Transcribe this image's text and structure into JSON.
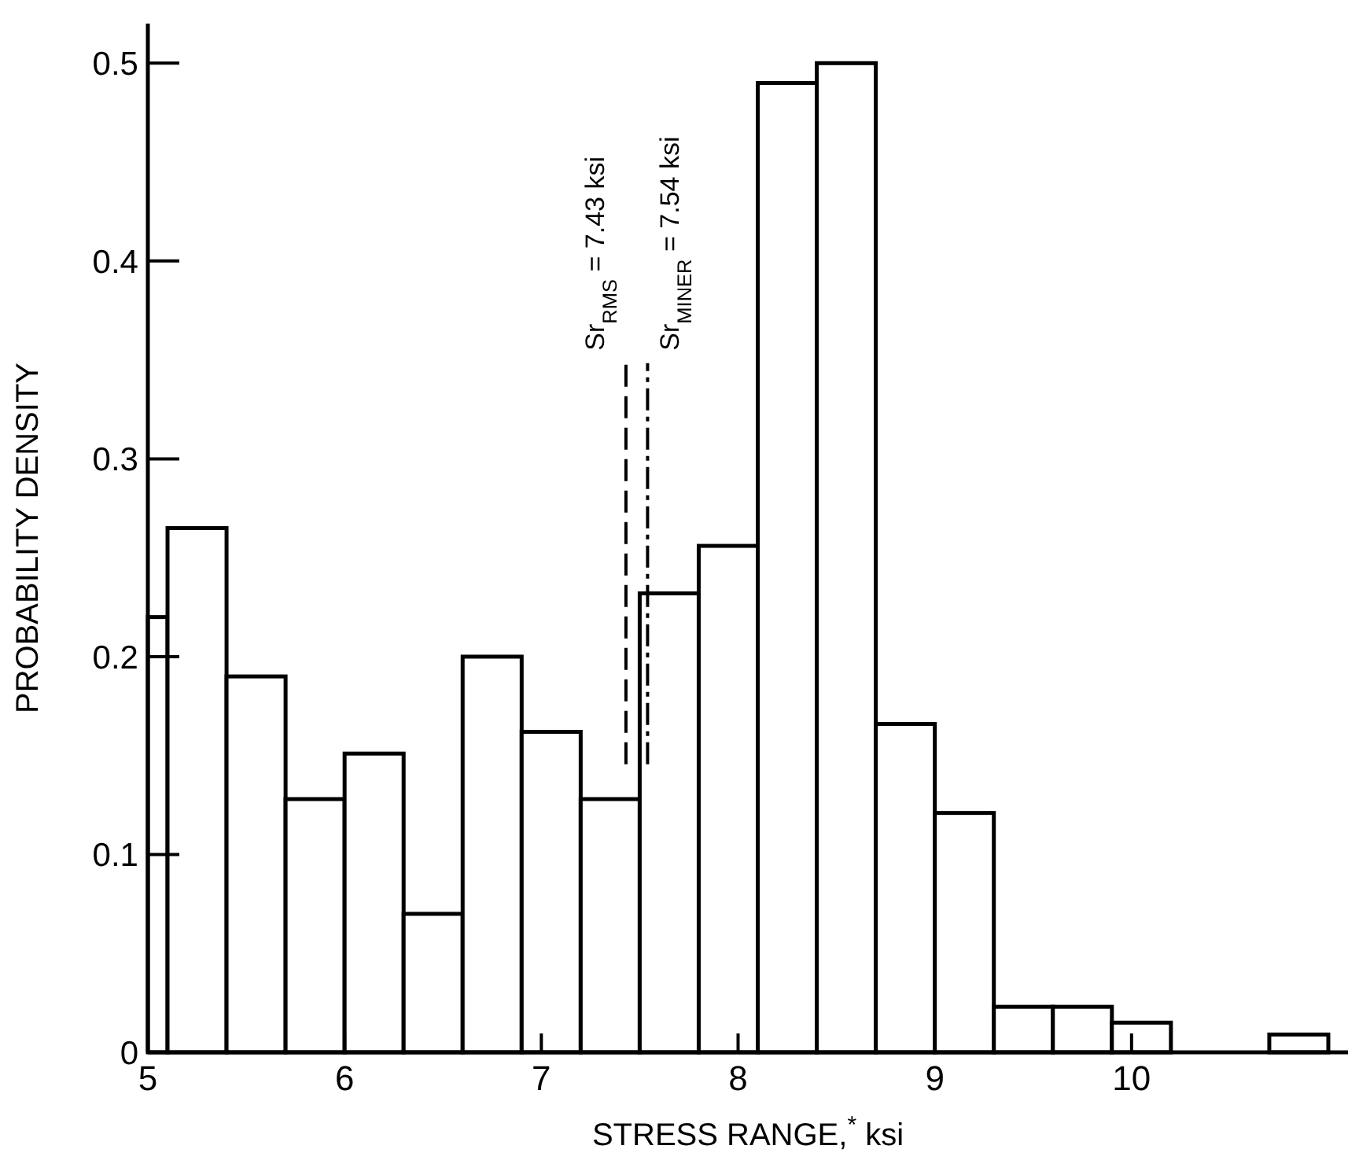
{
  "chart_data": {
    "type": "histogram",
    "xlabel": "STRESS RANGE,$^{*}$ ksi",
    "ylabel": "PROBABILITY DENSITY",
    "bins": [
      5.0,
      5.1,
      5.4,
      5.7,
      6.0,
      6.3,
      6.6,
      6.9,
      7.2,
      7.5,
      7.8,
      8.1,
      8.4,
      8.7,
      9.0,
      9.3,
      9.6,
      9.9,
      10.2,
      10.7,
      11.0
    ],
    "values": [
      0.22,
      0.265,
      0.19,
      0.128,
      0.151,
      0.07,
      0.2,
      0.162,
      0.128,
      0.232,
      0.256,
      0.49,
      0.5,
      0.166,
      0.121,
      0.023,
      0.023,
      0.015,
      0,
      0.009
    ],
    "color": "#ffffff",
    "xlim": [
      5,
      11.1
    ],
    "xticks": [
      5,
      6,
      7,
      8,
      9,
      10
    ],
    "ylim": [
      0,
      0.52
    ],
    "yticks": [
      0,
      0.1,
      0.2,
      0.3,
      0.4,
      0.5
    ],
    "grid": false,
    "ref_lines": [
      {
        "axis": "x",
        "value": 7.43,
        "label": "Sr$_{RMS}$  = 7.43 ksi",
        "line_style": "dashed",
        "color": "#000000"
      },
      {
        "axis": "x",
        "value": 7.54,
        "label": "Sr$_{MINER}$ = 7.54 ksi",
        "line_style": "dashdot",
        "color": "#000000"
      }
    ]
  }
}
